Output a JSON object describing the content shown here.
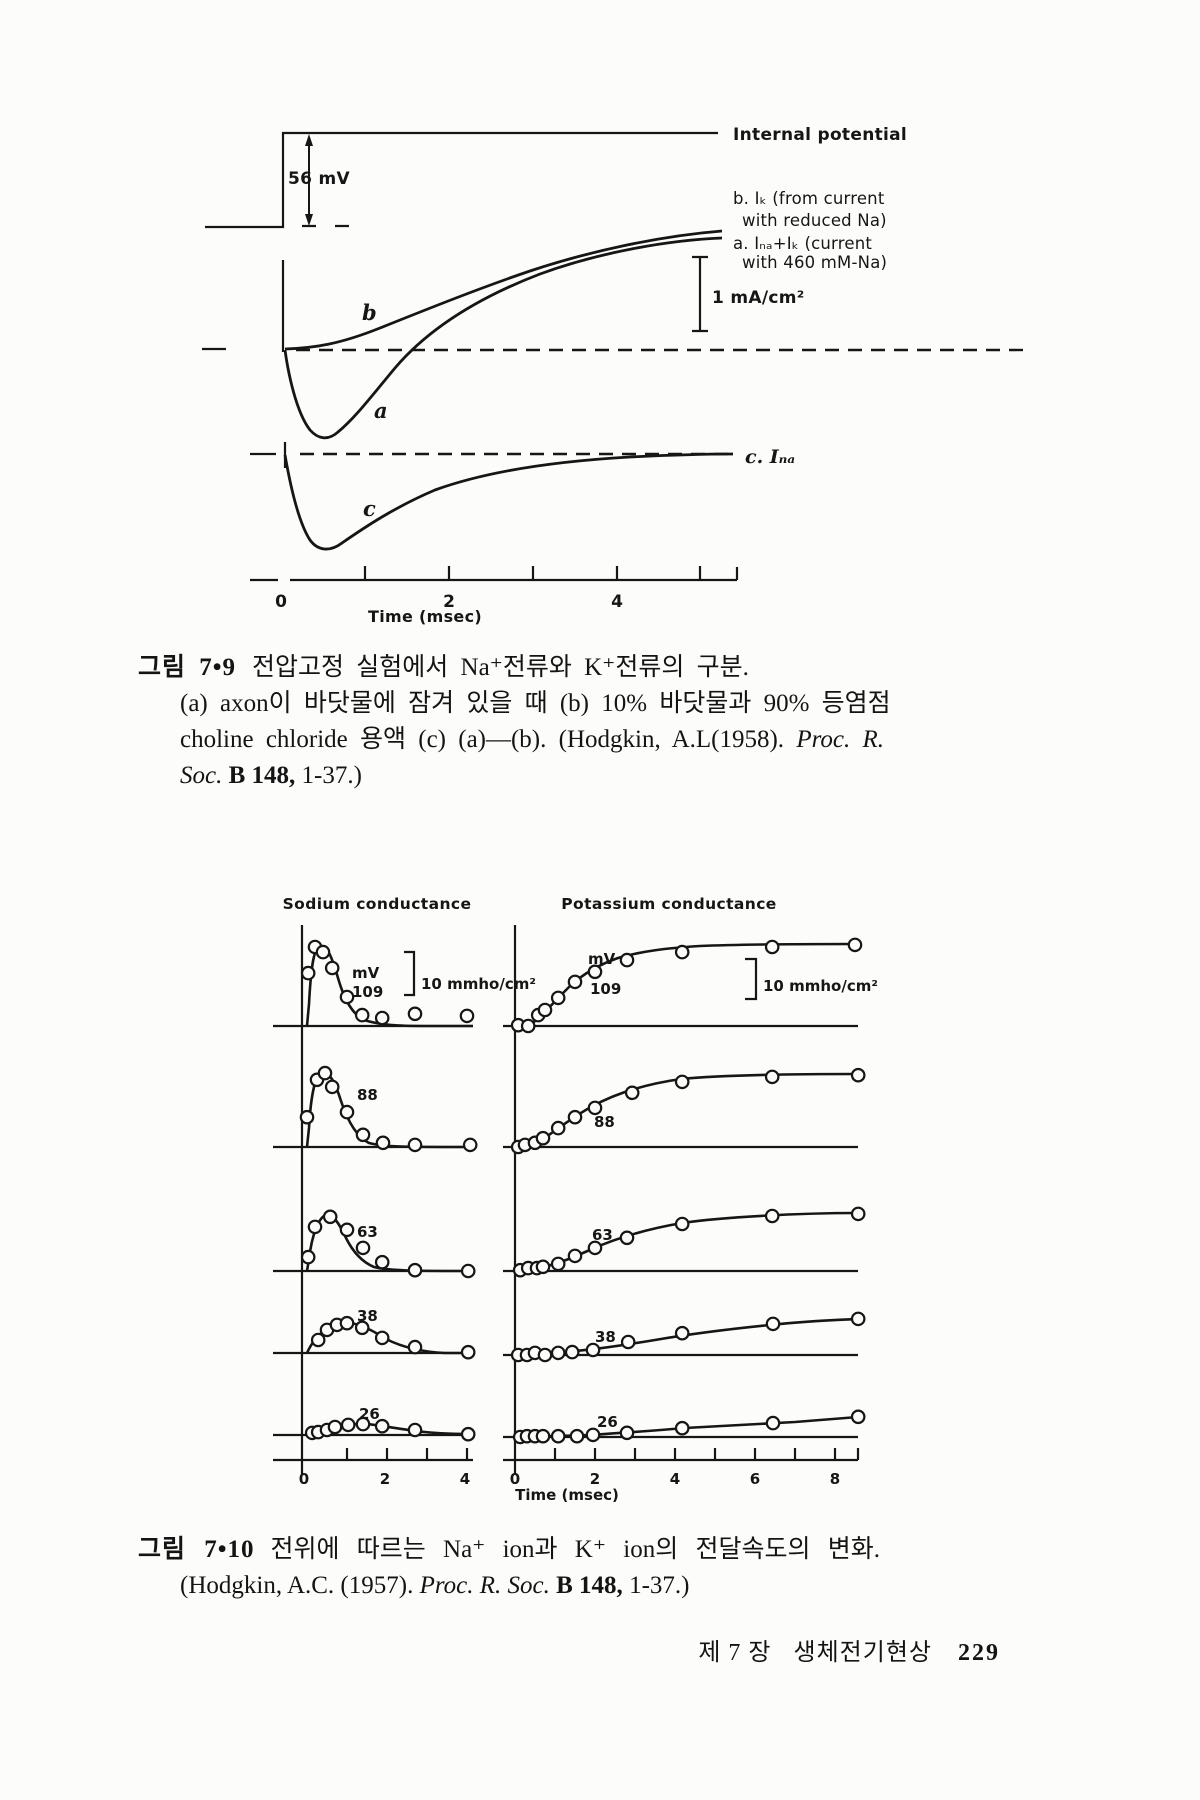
{
  "fig79": {
    "labels": {
      "internal_potential": "Internal potential",
      "voltage_step": "56 mV",
      "legend_b1": "b. Iₖ (from current",
      "legend_b2": "with reduced Na)",
      "legend_a1": "a. Iₙₐ+Iₖ (current",
      "legend_a2": "with 460 mM-Na)",
      "scale_bar": "1 mA/cm²",
      "curve_b": "b",
      "curve_a": "a",
      "curve_c": "c",
      "legend_c": "c. Iₙₐ",
      "x_tick_0": "0",
      "x_tick_2": "2",
      "x_tick_4": "4",
      "x_axis": "Time (msec)"
    },
    "caption": {
      "tag": "그림 7•9",
      "title": "전압고정 실험에서 Na⁺전류와 K⁺전류의 구분.",
      "line2": "(a) axon이 바닷물에 잠겨 있을 때 (b) 10% 바닷물과 90% 등염점",
      "line3a": "choline chloride 용액 (c) (a)—(b).  (Hodgkin, A.L(1958). ",
      "line3b": "Proc. R.",
      "line4a": "Soc.",
      "line4b": "B 148,",
      "line4c": "1-37.)"
    }
  },
  "fig710": {
    "headers": {
      "sodium": "Sodium conductance",
      "potassium": "Potassium conductance"
    },
    "labels": {
      "mv": "mV",
      "na_scale": "10 mmho/cm²",
      "k_scale": "10 mmho/cm²",
      "voltages": [
        "109",
        "88",
        "63",
        "38",
        "26"
      ],
      "na_ticks": [
        "0",
        "2",
        "4"
      ],
      "k_ticks": [
        "0",
        "2",
        "4",
        "6",
        "8"
      ],
      "x_axis": "Time (msec)"
    },
    "caption": {
      "tag": "그림 7•10",
      "title": "전위에 따르는 Na⁺ ion과 K⁺ ion의 전달속도의 변화.",
      "line2a": "(Hodgkin, A.C. (1957). ",
      "line2b": "Proc. R. Soc.",
      "line2c": "B 148,",
      "line2d": "1-37.)"
    }
  },
  "footer": {
    "chapter": "제 7 장",
    "section": "생체전기현상",
    "page_number": "229"
  },
  "chart_data": [
    {
      "id": "fig_7_9_voltage_clamp_currents",
      "type": "line",
      "title": "그림 7•9 전압고정 실험에서 Na⁺전류와 K⁺전류의 구분",
      "xlabel": "Time (msec)",
      "x_range": [
        0,
        5
      ],
      "units": "mA/cm²",
      "scale_bar": "1 mA/cm²",
      "voltage_step": "56 mV",
      "x": [
        0,
        0.1,
        0.25,
        0.5,
        0.75,
        1,
        1.5,
        2,
        2.5,
        3,
        3.5,
        4,
        4.5,
        5
      ],
      "series": [
        {
          "name": "a. I_Na+I_K (current with 460 mM-Na)",
          "values": [
            0,
            -0.55,
            -1.05,
            -1.22,
            -1.1,
            -0.85,
            -0.3,
            0.2,
            0.6,
            0.92,
            1.15,
            1.3,
            1.42,
            1.5
          ]
        },
        {
          "name": "b. I_K (from current with reduced Na)",
          "values": [
            0,
            0,
            0.02,
            0.06,
            0.13,
            0.22,
            0.46,
            0.72,
            0.97,
            1.17,
            1.33,
            1.45,
            1.55,
            1.62
          ]
        },
        {
          "name": "c. I_Na = (a)-(b)",
          "values": [
            0,
            -0.6,
            -1.1,
            -1.28,
            -1.23,
            -1.07,
            -0.72,
            -0.45,
            -0.28,
            -0.17,
            -0.1,
            -0.06,
            -0.03,
            -0.02
          ]
        }
      ]
    },
    {
      "id": "fig_7_10_sodium_conductance",
      "type": "scatter",
      "title": "Sodium conductance",
      "xlabel": "Time (msec)",
      "x_range": [
        0,
        4
      ],
      "units": "mmho/cm²",
      "scale_bar": "10 mmho/cm²",
      "rows": [
        {
          "depolarization_mV": 109,
          "points": [
            [
              0.03,
              12.6
            ],
            [
              0.2,
              18.8
            ],
            [
              0.4,
              17.6
            ],
            [
              0.63,
              13.8
            ],
            [
              1.0,
              6.9
            ],
            [
              1.38,
              2.6
            ],
            [
              1.88,
              1.9
            ],
            [
              2.7,
              2.9
            ],
            [
              4.0,
              2.4
            ]
          ]
        },
        {
          "depolarization_mV": 88,
          "points": [
            [
              0.0,
              7.1
            ],
            [
              0.25,
              16.0
            ],
            [
              0.45,
              17.6
            ],
            [
              0.63,
              14.3
            ],
            [
              1.0,
              8.3
            ],
            [
              1.4,
              2.9
            ],
            [
              1.9,
              1.0
            ],
            [
              2.7,
              0.5
            ],
            [
              4.08,
              0.5
            ]
          ]
        },
        {
          "depolarization_mV": 63,
          "points": [
            [
              0.03,
              3.3
            ],
            [
              0.2,
              10.5
            ],
            [
              0.58,
              12.9
            ],
            [
              1.0,
              9.8
            ],
            [
              1.4,
              5.5
            ],
            [
              1.88,
              2.1
            ],
            [
              2.7,
              0.2
            ],
            [
              4.03,
              0.0
            ]
          ]
        },
        {
          "depolarization_mV": 38,
          "points": [
            [
              0.28,
              3.1
            ],
            [
              0.5,
              5.5
            ],
            [
              0.75,
              6.7
            ],
            [
              1.0,
              7.1
            ],
            [
              1.38,
              6.0
            ],
            [
              1.88,
              3.6
            ],
            [
              2.7,
              1.4
            ],
            [
              4.03,
              0.2
            ]
          ]
        },
        {
          "depolarization_mV": 26,
          "points": [
            [
              0.13,
              0.5
            ],
            [
              0.28,
              0.7
            ],
            [
              0.5,
              1.2
            ],
            [
              0.7,
              1.9
            ],
            [
              1.03,
              2.4
            ],
            [
              1.4,
              2.6
            ],
            [
              1.88,
              2.1
            ],
            [
              2.7,
              1.2
            ],
            [
              4.03,
              0.2
            ]
          ]
        }
      ]
    },
    {
      "id": "fig_7_10_potassium_conductance",
      "type": "scatter",
      "title": "Potassium conductance",
      "xlabel": "Time (msec)",
      "x_range": [
        0,
        9
      ],
      "units": "mmho/cm²",
      "scale_bar": "10 mmho/cm²",
      "rows": [
        {
          "depolarization_mV": 109,
          "points": [
            [
              0.08,
              0.2
            ],
            [
              0.33,
              0.0
            ],
            [
              0.58,
              2.6
            ],
            [
              0.75,
              3.8
            ],
            [
              1.08,
              6.7
            ],
            [
              1.5,
              10.5
            ],
            [
              2.0,
              12.9
            ],
            [
              2.8,
              15.7
            ],
            [
              4.18,
              17.6
            ],
            [
              6.43,
              18.8
            ],
            [
              8.5,
              19.3
            ]
          ]
        },
        {
          "depolarization_mV": 88,
          "points": [
            [
              0.08,
              0.0
            ],
            [
              0.25,
              0.5
            ],
            [
              0.5,
              1.0
            ],
            [
              0.7,
              2.1
            ],
            [
              1.08,
              4.5
            ],
            [
              1.5,
              7.1
            ],
            [
              2.0,
              9.3
            ],
            [
              2.93,
              12.9
            ],
            [
              4.18,
              15.5
            ],
            [
              6.43,
              16.7
            ],
            [
              8.58,
              17.1
            ]
          ]
        },
        {
          "depolarization_mV": 63,
          "points": [
            [
              0.13,
              0.2
            ],
            [
              0.33,
              0.7
            ],
            [
              0.55,
              0.7
            ],
            [
              0.7,
              1.0
            ],
            [
              1.08,
              1.7
            ],
            [
              1.5,
              3.6
            ],
            [
              2.0,
              5.5
            ],
            [
              2.8,
              7.9
            ],
            [
              4.18,
              11.2
            ],
            [
              6.43,
              13.1
            ],
            [
              8.58,
              13.6
            ]
          ]
        },
        {
          "depolarization_mV": 38,
          "points": [
            [
              0.08,
              0.0
            ],
            [
              0.3,
              0.0
            ],
            [
              0.5,
              0.5
            ],
            [
              0.75,
              0.0
            ],
            [
              1.08,
              0.5
            ],
            [
              1.43,
              0.7
            ],
            [
              1.95,
              1.2
            ],
            [
              2.83,
              3.1
            ],
            [
              4.18,
              5.2
            ],
            [
              6.45,
              7.4
            ],
            [
              8.58,
              8.6
            ]
          ]
        },
        {
          "depolarization_mV": 26,
          "points": [
            [
              0.13,
              0.0
            ],
            [
              0.3,
              0.2
            ],
            [
              0.5,
              0.2
            ],
            [
              0.7,
              0.2
            ],
            [
              1.08,
              0.2
            ],
            [
              1.55,
              0.2
            ],
            [
              1.95,
              0.5
            ],
            [
              2.8,
              1.0
            ],
            [
              4.18,
              2.1
            ],
            [
              6.45,
              3.3
            ],
            [
              8.58,
              4.8
            ]
          ]
        }
      ]
    }
  ]
}
